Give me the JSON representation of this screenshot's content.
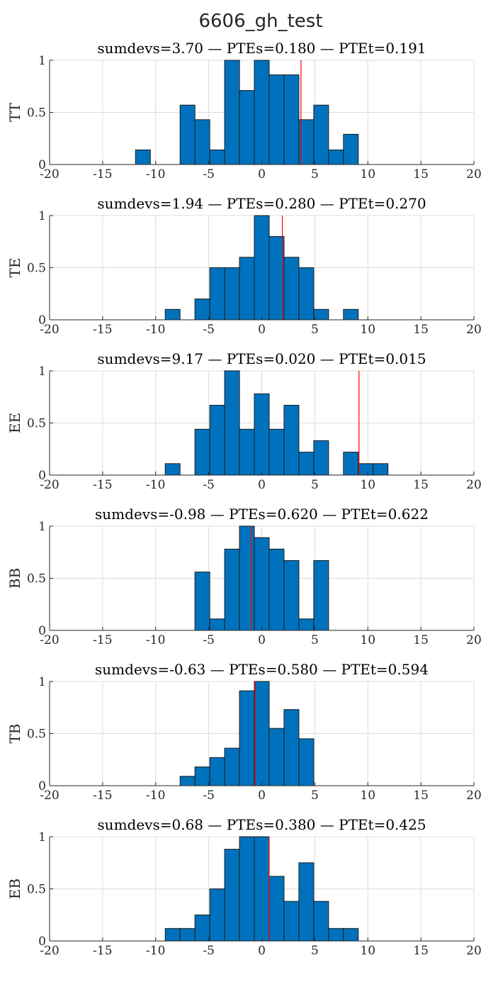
{
  "figure": {
    "title": "6606_gh_test"
  },
  "chart_data": [
    {
      "type": "bar",
      "ylabel": "TT",
      "title": "sumdevs=3.70 — PTEs=0.180 — PTEt=0.191",
      "xlim": [
        -20,
        20
      ],
      "ylim": [
        0,
        1
      ],
      "xticks": [
        "-20",
        "-15",
        "-10",
        "-5",
        "0",
        "5",
        "10",
        "15",
        "20"
      ],
      "yticks": [
        "0",
        "0.5",
        "1"
      ],
      "bin_width": 1.4,
      "bars": [
        {
          "x": -11.2,
          "value": 0.14
        },
        {
          "x": -7.0,
          "value": 0.57
        },
        {
          "x": -5.6,
          "value": 0.43
        },
        {
          "x": -4.2,
          "value": 0.14
        },
        {
          "x": -2.8,
          "value": 1.0
        },
        {
          "x": -1.4,
          "value": 0.71
        },
        {
          "x": 0.0,
          "value": 1.0
        },
        {
          "x": 1.4,
          "value": 0.86
        },
        {
          "x": 2.8,
          "value": 0.86
        },
        {
          "x": 4.2,
          "value": 0.43
        },
        {
          "x": 5.6,
          "value": 0.57
        },
        {
          "x": 7.0,
          "value": 0.14
        },
        {
          "x": 8.4,
          "value": 0.29
        }
      ],
      "marker_x": 3.7,
      "grid": true
    },
    {
      "type": "bar",
      "ylabel": "TE",
      "title": "sumdevs=1.94 — PTEs=0.280 — PTEt=0.270",
      "xlim": [
        -20,
        20
      ],
      "ylim": [
        0,
        1
      ],
      "xticks": [
        "-20",
        "-15",
        "-10",
        "-5",
        "0",
        "5",
        "10",
        "15",
        "20"
      ],
      "yticks": [
        "0",
        "0.5",
        "1"
      ],
      "bin_width": 1.4,
      "bars": [
        {
          "x": -8.4,
          "value": 0.1
        },
        {
          "x": -5.6,
          "value": 0.2
        },
        {
          "x": -4.2,
          "value": 0.5
        },
        {
          "x": -2.8,
          "value": 0.5
        },
        {
          "x": -1.4,
          "value": 0.6
        },
        {
          "x": 0.0,
          "value": 1.0
        },
        {
          "x": 1.4,
          "value": 0.8
        },
        {
          "x": 2.8,
          "value": 0.6
        },
        {
          "x": 4.2,
          "value": 0.5
        },
        {
          "x": 5.6,
          "value": 0.1
        },
        {
          "x": 8.4,
          "value": 0.1
        }
      ],
      "marker_x": 1.94,
      "grid": true
    },
    {
      "type": "bar",
      "ylabel": "EE",
      "title": "sumdevs=9.17 — PTEs=0.020 — PTEt=0.015",
      "xlim": [
        -20,
        20
      ],
      "ylim": [
        0,
        1
      ],
      "xticks": [
        "-20",
        "-15",
        "-10",
        "-5",
        "0",
        "5",
        "10",
        "15",
        "20"
      ],
      "yticks": [
        "0",
        "0.5",
        "1"
      ],
      "bin_width": 1.4,
      "bars": [
        {
          "x": -8.4,
          "value": 0.11
        },
        {
          "x": -5.6,
          "value": 0.44
        },
        {
          "x": -4.2,
          "value": 0.67
        },
        {
          "x": -2.8,
          "value": 1.0
        },
        {
          "x": -1.4,
          "value": 0.44
        },
        {
          "x": 0.0,
          "value": 0.78
        },
        {
          "x": 1.4,
          "value": 0.44
        },
        {
          "x": 2.8,
          "value": 0.67
        },
        {
          "x": 4.2,
          "value": 0.22
        },
        {
          "x": 5.6,
          "value": 0.33
        },
        {
          "x": 8.4,
          "value": 0.22
        },
        {
          "x": 9.8,
          "value": 0.11
        },
        {
          "x": 11.2,
          "value": 0.11
        }
      ],
      "marker_x": 9.17,
      "grid": true
    },
    {
      "type": "bar",
      "ylabel": "BB",
      "title": "sumdevs=-0.98 — PTEs=0.620 — PTEt=0.622",
      "xlim": [
        -20,
        20
      ],
      "ylim": [
        0,
        1
      ],
      "xticks": [
        "-20",
        "-15",
        "-10",
        "-5",
        "0",
        "5",
        "10",
        "15",
        "20"
      ],
      "yticks": [
        "0",
        "0.5",
        "1"
      ],
      "bin_width": 1.4,
      "bars": [
        {
          "x": -5.6,
          "value": 0.56
        },
        {
          "x": -4.2,
          "value": 0.11
        },
        {
          "x": -2.8,
          "value": 0.78
        },
        {
          "x": -1.4,
          "value": 1.0
        },
        {
          "x": 0.0,
          "value": 0.89
        },
        {
          "x": 1.4,
          "value": 0.78
        },
        {
          "x": 2.8,
          "value": 0.67
        },
        {
          "x": 4.2,
          "value": 0.11
        },
        {
          "x": 5.6,
          "value": 0.67
        }
      ],
      "marker_x": -0.98,
      "grid": true
    },
    {
      "type": "bar",
      "ylabel": "TB",
      "title": "sumdevs=-0.63 — PTEs=0.580 — PTEt=0.594",
      "xlim": [
        -20,
        20
      ],
      "ylim": [
        0,
        1
      ],
      "xticks": [
        "-20",
        "-15",
        "-10",
        "-5",
        "0",
        "5",
        "10",
        "15",
        "20"
      ],
      "yticks": [
        "0",
        "0.5",
        "1"
      ],
      "bin_width": 1.4,
      "bars": [
        {
          "x": -7.0,
          "value": 0.09
        },
        {
          "x": -5.6,
          "value": 0.18
        },
        {
          "x": -4.2,
          "value": 0.27
        },
        {
          "x": -2.8,
          "value": 0.36
        },
        {
          "x": -1.4,
          "value": 0.91
        },
        {
          "x": 0.0,
          "value": 1.0
        },
        {
          "x": 1.4,
          "value": 0.55
        },
        {
          "x": 2.8,
          "value": 0.73
        },
        {
          "x": 4.2,
          "value": 0.45
        }
      ],
      "marker_x": -0.63,
      "grid": true
    },
    {
      "type": "bar",
      "ylabel": "EB",
      "title": "sumdevs=0.68 — PTEs=0.380 — PTEt=0.425",
      "xlim": [
        -20,
        20
      ],
      "ylim": [
        0,
        1
      ],
      "xticks": [
        "-20",
        "-15",
        "-10",
        "-5",
        "0",
        "5",
        "10",
        "15",
        "20"
      ],
      "yticks": [
        "0",
        "0.5",
        "1"
      ],
      "bin_width": 1.4,
      "bars": [
        {
          "x": -8.4,
          "value": 0.12
        },
        {
          "x": -7.0,
          "value": 0.12
        },
        {
          "x": -5.6,
          "value": 0.25
        },
        {
          "x": -4.2,
          "value": 0.5
        },
        {
          "x": -2.8,
          "value": 0.88
        },
        {
          "x": -1.4,
          "value": 1.0
        },
        {
          "x": 0.0,
          "value": 1.0
        },
        {
          "x": 1.4,
          "value": 0.62
        },
        {
          "x": 2.8,
          "value": 0.38
        },
        {
          "x": 4.2,
          "value": 0.75
        },
        {
          "x": 5.6,
          "value": 0.38
        },
        {
          "x": 7.0,
          "value": 0.12
        },
        {
          "x": 8.4,
          "value": 0.12
        }
      ],
      "marker_x": 0.68,
      "grid": true
    }
  ],
  "colors": {
    "bar_fill": "#0072bd",
    "bar_edge": "#1a1a1a",
    "marker": "#ff0000",
    "grid": "#dcdcdc",
    "axis": "#262626"
  }
}
